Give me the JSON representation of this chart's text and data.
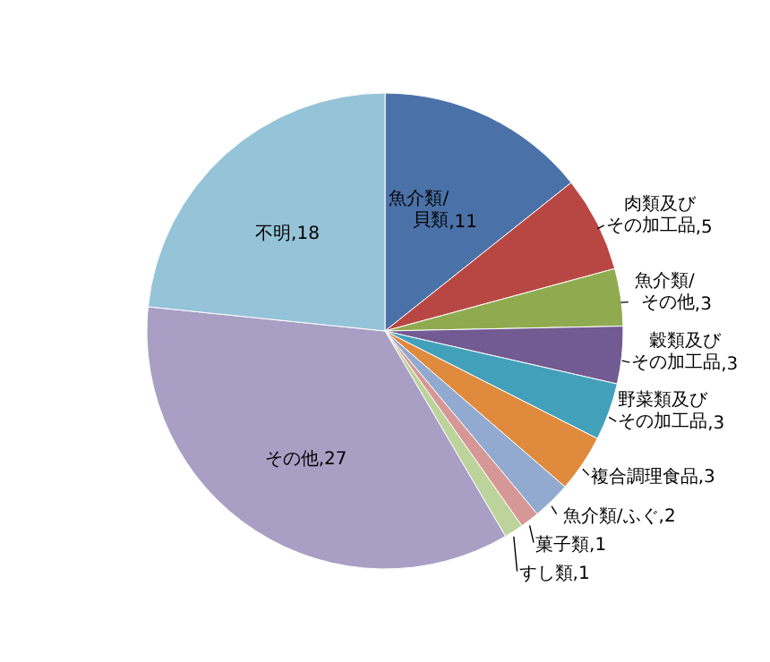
{
  "chart_data": {
    "type": "pie",
    "categories": [
      "魚介類/貝類",
      "肉類及びその加工品",
      "魚介類/その他",
      "穀類及びその加工品",
      "野菜類及びその加工品",
      "複合調理食品",
      "魚介類/ふぐ",
      "菓子類",
      "すし類",
      "その他",
      "不明"
    ],
    "values": [
      11,
      5,
      3,
      3,
      3,
      3,
      2,
      1,
      1,
      27,
      18
    ],
    "value_labels": [
      ",11",
      ",5",
      ",3",
      ",3",
      ",3",
      ",3",
      ",2",
      ",1",
      ",1",
      ",27",
      ",18"
    ],
    "colors": [
      "#4a72a8",
      "#b84744",
      "#90ab4f",
      "#725a92",
      "#43a0ba",
      "#e08a3e",
      "#92a9d0",
      "#d59896",
      "#bcd39b",
      "#a99ec4",
      "#95c3d8"
    ]
  }
}
